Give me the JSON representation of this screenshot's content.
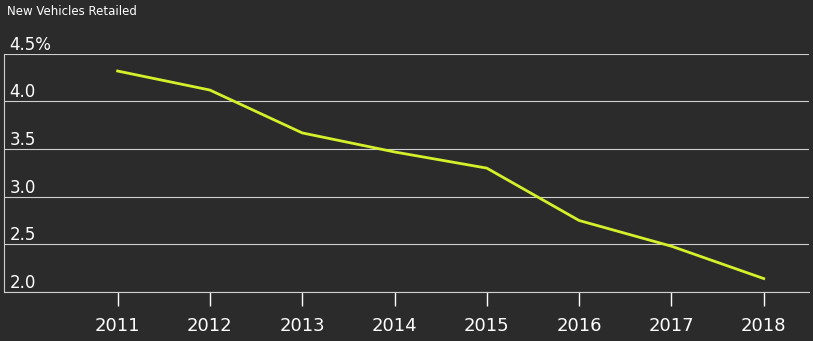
{
  "chart_data": {
    "type": "line",
    "title": "New Vehicles Retailed",
    "x": [
      2011,
      2012,
      2013,
      2014,
      2015,
      2016,
      2017,
      2018
    ],
    "values": [
      4.32,
      4.12,
      3.67,
      3.47,
      3.3,
      2.75,
      2.48,
      2.14
    ],
    "color": "#d4f02a",
    "xlim": [
      2009.77,
      2018.49
    ],
    "xticks": [
      2011,
      2012,
      2013,
      2014,
      2015,
      2016,
      2017,
      2018
    ],
    "ylim": [
      2.0,
      4.5
    ],
    "yticks": [
      {
        "value": 2.0,
        "label": "2.0"
      },
      {
        "value": 2.5,
        "label": "2.5"
      },
      {
        "value": 3.0,
        "label": "3.0"
      },
      {
        "value": 3.5,
        "label": "3.5"
      },
      {
        "value": 4.0,
        "label": "4.0"
      },
      {
        "value": 4.5,
        "label": "4.5%"
      }
    ],
    "grid": true
  }
}
